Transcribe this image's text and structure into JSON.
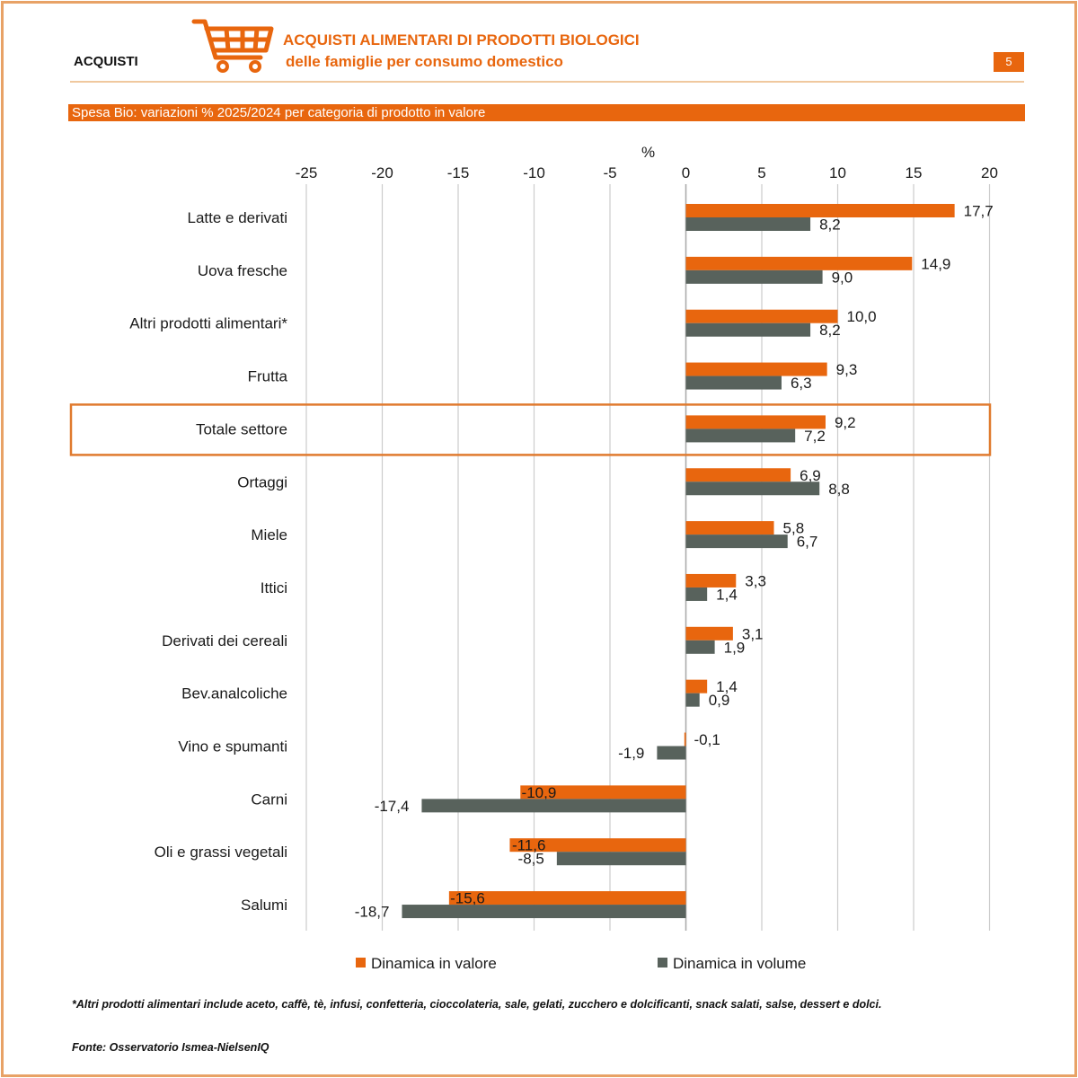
{
  "header": {
    "section": "ACQUISTI",
    "title_line1": "ACQUISTI ALIMENTARI DI PRODOTTI BIOLOGICI",
    "title_line2": "delle famiglie per consumo domestico",
    "page_number": "5",
    "icon": "shopping-cart-icon"
  },
  "banner": "Spesa Bio: variazioni % 2025/2024 per categoria di prodotto in valore",
  "legend": {
    "value_label": "Dinamica in valore",
    "volume_label": "Dinamica in volume"
  },
  "footnote": "*Altri prodotti alimentari include aceto, caffè, tè, infusi, confetteria, cioccolateria, sale, gelati, zucchero e dolcificanti, snack salati, salse, dessert e dolci.",
  "source": "Fonte: Osservatorio Ismea-NielsenIQ",
  "colors": {
    "accent": "#e8660e",
    "value_series": "#e8660e",
    "volume_series": "#58625c",
    "highlight_box": "#e07a2e",
    "grid": "#cccccc"
  },
  "chart_data": {
    "type": "bar",
    "orientation": "horizontal",
    "unit_label": "%",
    "xlim": [
      -25,
      20
    ],
    "xticks": [
      -25,
      -20,
      -15,
      -10,
      -5,
      0,
      5,
      10,
      15,
      20
    ],
    "tick_labels": [
      "-25",
      "-20",
      "-15",
      "-10",
      "-5",
      "0",
      "5",
      "10",
      "15",
      "20"
    ],
    "grid": "vertical",
    "legend_position": "bottom",
    "highlighted_category": "Totale settore",
    "categories": [
      "Latte e derivati",
      "Uova fresche",
      "Altri prodotti alimentari*",
      "Frutta",
      "Totale settore",
      "Ortaggi",
      "Miele",
      "Ittici",
      "Derivati dei cereali",
      "Bev.analcoliche",
      "Vino e spumanti",
      "Carni",
      "Oli e grassi vegetali",
      "Salumi"
    ],
    "series": [
      {
        "name": "Dinamica in valore",
        "values": [
          17.7,
          14.9,
          10.0,
          9.3,
          9.2,
          6.9,
          5.8,
          3.3,
          3.1,
          1.4,
          -0.1,
          -10.9,
          -11.6,
          -15.6
        ],
        "labels": [
          "17,7",
          "14,9",
          "10,0",
          "9,3",
          "9,2",
          "6,9",
          "5,8",
          "3,3",
          "3,1",
          "1,4",
          "-0,1",
          "-10,9",
          "-11,6",
          "-15,6"
        ]
      },
      {
        "name": "Dinamica in volume",
        "values": [
          8.2,
          9.0,
          8.2,
          6.3,
          7.2,
          8.8,
          6.7,
          1.4,
          1.9,
          0.9,
          -1.9,
          -17.4,
          -8.5,
          -18.7
        ],
        "labels": [
          "8,2",
          "9,0",
          "8,2",
          "6,3",
          "7,2",
          "8,8",
          "6,7",
          "1,4",
          "1,9",
          "0,9",
          "-1,9",
          "-17,4",
          "-8,5",
          "-18,7"
        ]
      }
    ]
  }
}
